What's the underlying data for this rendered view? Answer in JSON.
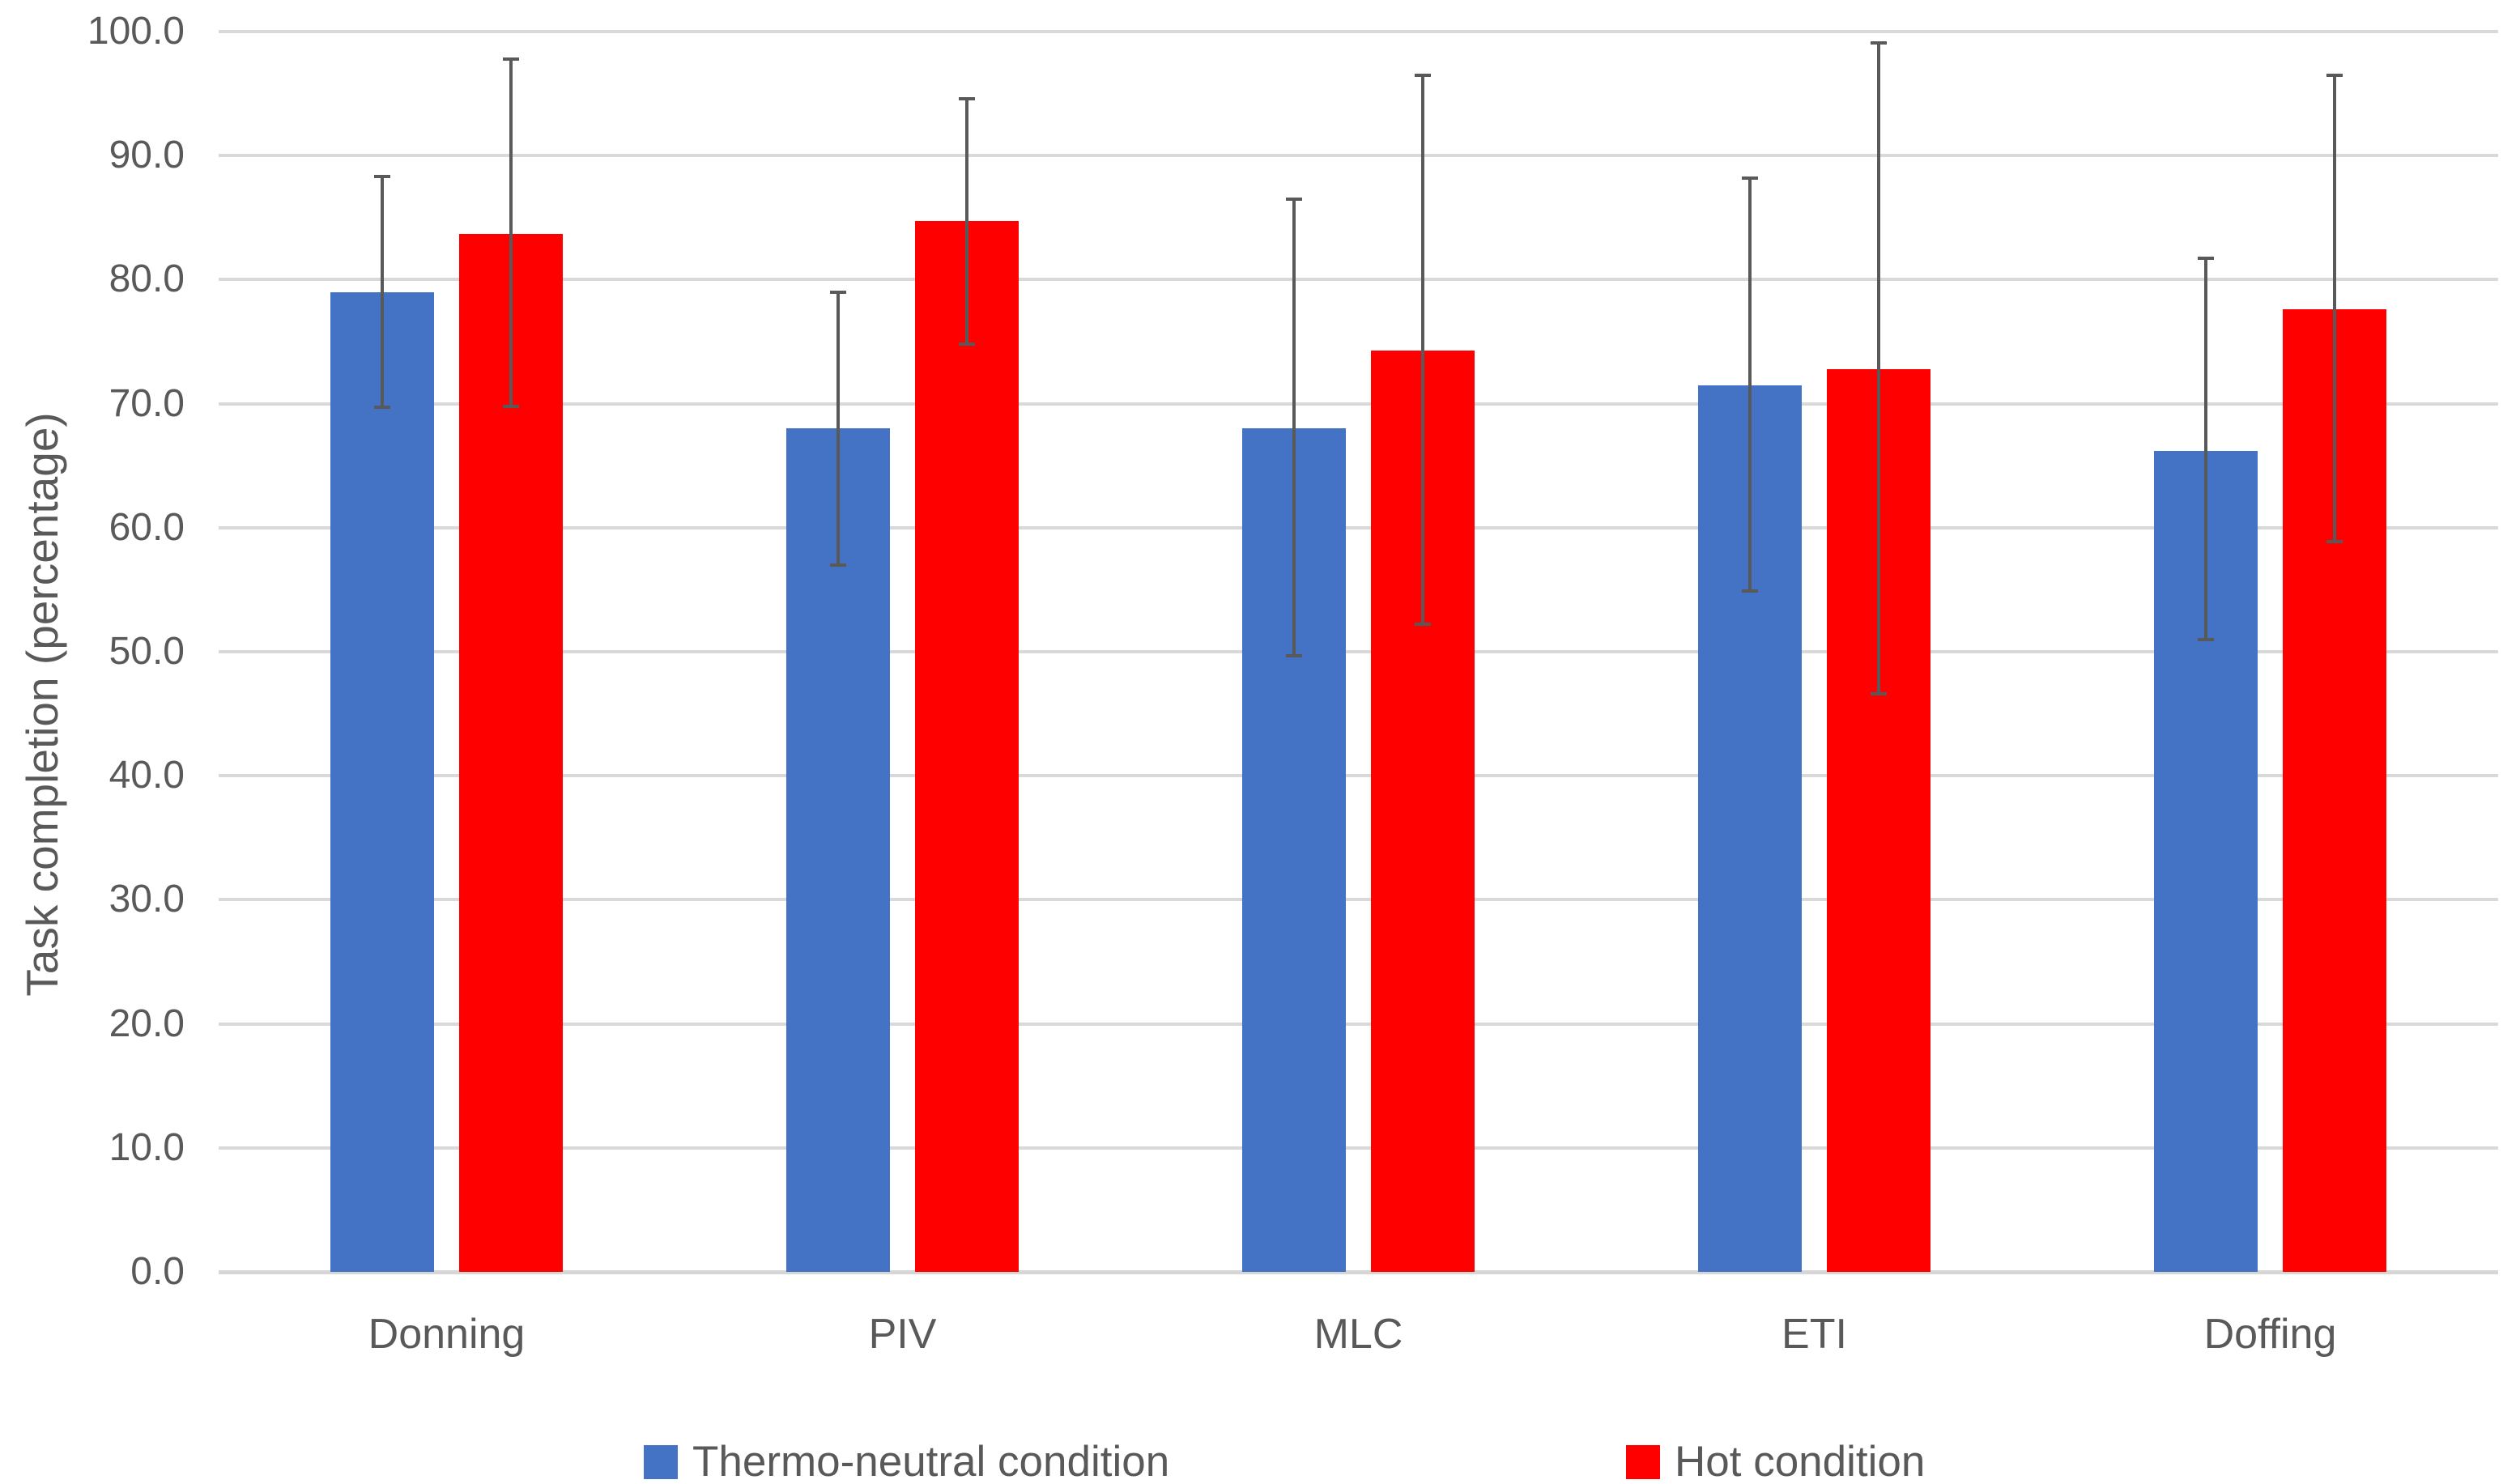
{
  "chart_data": {
    "type": "bar",
    "title": "",
    "xlabel": "",
    "ylabel": "Task completion (percentage)",
    "ylim": [
      0,
      100
    ],
    "ytick_step": 10,
    "ytick_labels": [
      "0.0",
      "10.0",
      "20.0",
      "30.0",
      "40.0",
      "50.0",
      "60.0",
      "70.0",
      "80.0",
      "90.0",
      "100.0"
    ],
    "categories": [
      "Donning",
      "PIV",
      "MLC",
      "ETI",
      "Doffing"
    ],
    "series": [
      {
        "name": "Thermo-neutral condition",
        "color": "#4472C4",
        "values": [
          79.0,
          68.0,
          68.0,
          71.5,
          66.2
        ],
        "error_high": [
          88.3,
          79.0,
          86.5,
          88.2,
          81.7
        ],
        "error_low": [
          69.7,
          57.0,
          49.7,
          54.9,
          51.0
        ]
      },
      {
        "name": "Hot condition",
        "color": "#FF0000",
        "values": [
          83.7,
          84.7,
          74.3,
          72.8,
          77.6
        ],
        "error_high": [
          97.8,
          94.6,
          96.5,
          99.1,
          96.5
        ],
        "error_low": [
          69.8,
          74.8,
          52.2,
          46.6,
          58.9
        ]
      }
    ],
    "grid": true,
    "legend_position": "bottom",
    "colors": {
      "gridline": "#D9D9D9",
      "baseline": "#D6D6D6",
      "error_bar": "#595959",
      "text": "#595959",
      "background": "#FFFFFF"
    }
  }
}
